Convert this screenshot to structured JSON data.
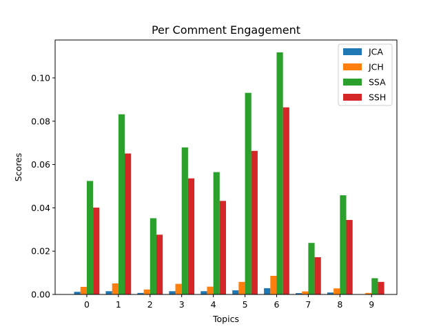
{
  "chart_data": {
    "type": "bar",
    "title": "Per Comment Engagement",
    "xlabel": "Topics",
    "ylabel": "Scores",
    "categories": [
      "0",
      "1",
      "2",
      "3",
      "4",
      "5",
      "6",
      "7",
      "8",
      "9"
    ],
    "ylim": [
      0,
      0.1175
    ],
    "yticks": [
      "0.00",
      "0.02",
      "0.04",
      "0.06",
      "0.08",
      "0.10"
    ],
    "grid": false,
    "legend_position": "top-right",
    "series": [
      {
        "name": "JCA",
        "color": "#1f77b4",
        "values": [
          0.0012,
          0.0015,
          0.0007,
          0.0015,
          0.0015,
          0.0019,
          0.0029,
          0.0006,
          0.0009,
          0.0001
        ]
      },
      {
        "name": "JCH",
        "color": "#ff7f0e",
        "values": [
          0.0035,
          0.0051,
          0.0023,
          0.0049,
          0.0036,
          0.0058,
          0.0086,
          0.0014,
          0.0028,
          0.0007
        ]
      },
      {
        "name": "SSA",
        "color": "#2ca02c",
        "values": [
          0.0524,
          0.0832,
          0.0352,
          0.0679,
          0.0565,
          0.0931,
          0.1118,
          0.0238,
          0.0458,
          0.0075
        ]
      },
      {
        "name": "SSH",
        "color": "#d62728",
        "values": [
          0.0401,
          0.0651,
          0.0276,
          0.0536,
          0.0432,
          0.0663,
          0.0864,
          0.0172,
          0.0344,
          0.0058
        ]
      }
    ]
  }
}
